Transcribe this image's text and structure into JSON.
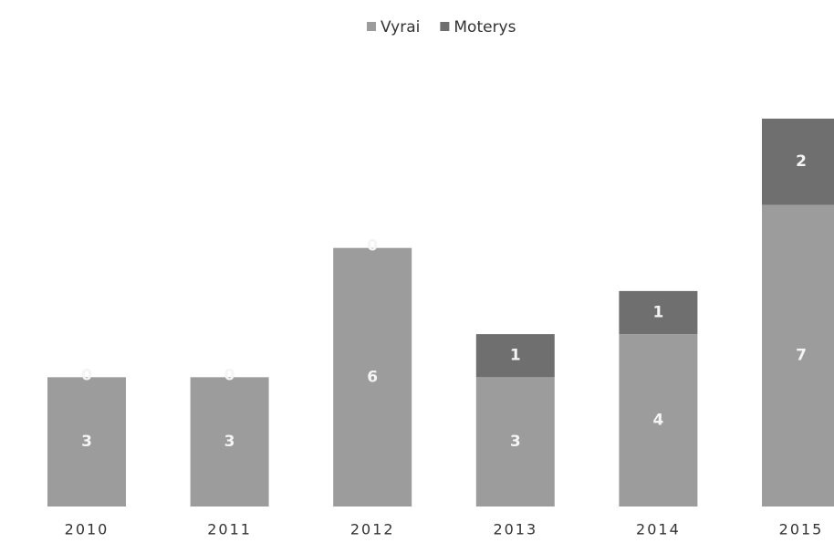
{
  "chart_data": {
    "type": "stacked_bar",
    "categories": [
      "2010",
      "2011",
      "2012",
      "2013",
      "2014",
      "2015"
    ],
    "series": [
      {
        "name": "Vyrai",
        "color": "#9c9c9c",
        "values": [
          3,
          3,
          6,
          3,
          4,
          7
        ]
      },
      {
        "name": "Moterys",
        "color": "#6f6f6f",
        "values": [
          0,
          0,
          0,
          1,
          1,
          2
        ]
      }
    ],
    "legend": "top"
  }
}
